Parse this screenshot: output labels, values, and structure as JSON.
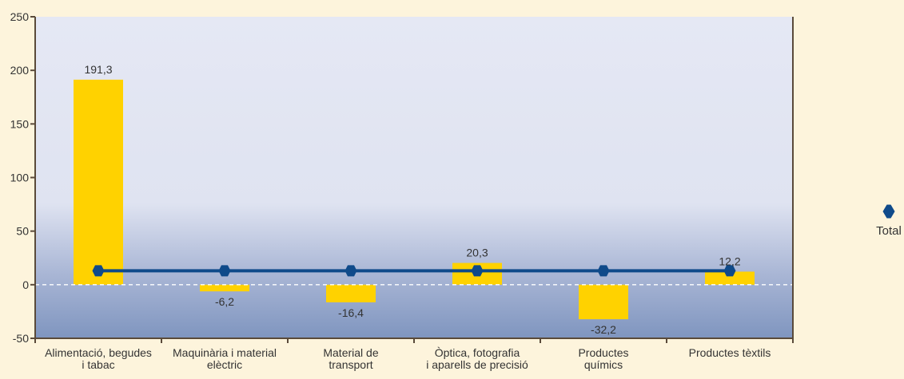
{
  "colors": {
    "page_background": "#fdf4dc",
    "plot_top": "#e5e8f4",
    "plot_bottom": "#7f95bf",
    "bar": "#ffd200",
    "line": "#0f4a8a",
    "axis": "#5a4a3a",
    "zero_line": "#ffffff"
  },
  "legend": {
    "series_label": "Total",
    "marker_icon": "hexagon-marker-icon",
    "position": "right"
  },
  "chart_data": {
    "type": "bar",
    "categories": [
      [
        "Alimentació, begudes",
        "i tabac"
      ],
      [
        "Maquinària i material",
        "elèctric"
      ],
      [
        "Material de",
        "transport"
      ],
      [
        "Òptica, fotografia",
        "i aparells de precisió"
      ],
      [
        "Productes",
        "químics"
      ],
      [
        "Productes tèxtils"
      ]
    ],
    "series": [
      {
        "kind": "bar",
        "values": [
          191.3,
          -6.2,
          -16.4,
          20.3,
          -32.2,
          12.2
        ],
        "data_labels": [
          "191,3",
          "-6,2",
          "-16,4",
          "20,3",
          "-32,2",
          "12,2"
        ]
      },
      {
        "kind": "line",
        "name": "Total",
        "marker": "hexagon",
        "values": [
          13,
          13,
          13,
          13,
          13,
          13
        ]
      }
    ],
    "ylim": [
      -50,
      250
    ],
    "yticks": [
      -50,
      0,
      50,
      100,
      150,
      200,
      250
    ],
    "ytick_labels": [
      "-50",
      "0",
      "50",
      "100",
      "150",
      "200",
      "250"
    ],
    "zero_line": "dashed",
    "grid": false,
    "title": "",
    "xlabel": "",
    "ylabel": ""
  }
}
